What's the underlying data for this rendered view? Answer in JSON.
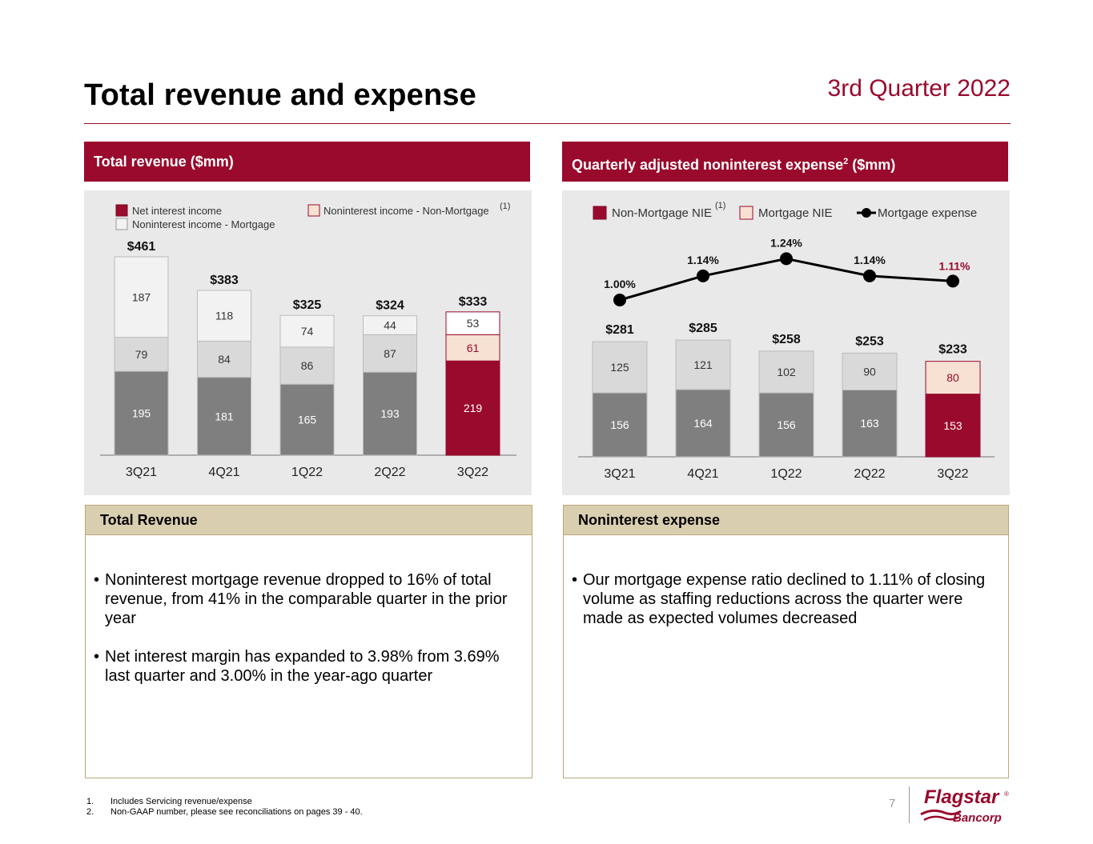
{
  "header": {
    "title": "Total revenue and expense",
    "subtitle": "3rd Quarter 2022"
  },
  "colors": {
    "brand": "#990a2c",
    "dark_gray": "#7f7f7f",
    "light_gray": "#d9d9d9",
    "very_light": "#f2f2f2",
    "peach": "#f6e1d3",
    "tan": "#d9cfb0"
  },
  "left_panel": {
    "banner": "Total revenue ($mm)"
  },
  "right_panel": {
    "banner_text": "Quarterly adjusted noninterest expense",
    "banner_sup": "2",
    "banner_suffix": " ($mm)"
  },
  "chart_data": [
    {
      "type": "bar",
      "title": "Total revenue ($mm)",
      "categories": [
        "3Q21",
        "4Q21",
        "1Q22",
        "2Q22",
        "3Q22"
      ],
      "series": [
        {
          "name": "Net interest income",
          "values": [
            195,
            181,
            165,
            193,
            219
          ]
        },
        {
          "name": "Noninterest income - Non-Mortgage",
          "values": [
            79,
            84,
            86,
            87,
            61
          ]
        },
        {
          "name": "Noninterest income - Mortgage",
          "values": [
            187,
            118,
            74,
            44,
            53
          ]
        }
      ],
      "totals": [
        "$461",
        "$383",
        "$325",
        "$324",
        "$333"
      ],
      "legend_footnote": "(1)",
      "highlight_category": "3Q22",
      "ylim": [
        0,
        461
      ]
    },
    {
      "type": "bar",
      "title": "Quarterly adjusted noninterest expense ($mm)",
      "categories": [
        "3Q21",
        "4Q21",
        "1Q22",
        "2Q22",
        "3Q22"
      ],
      "series": [
        {
          "name": "Non-Mortgage NIE",
          "values": [
            156,
            164,
            156,
            163,
            153
          ]
        },
        {
          "name": "Mortgage NIE",
          "values": [
            125,
            121,
            102,
            90,
            80
          ]
        }
      ],
      "totals": [
        "$281",
        "$285",
        "$258",
        "$253",
        "$233"
      ],
      "line_series": {
        "name": "Mortgage expense",
        "values": [
          1.0,
          1.14,
          1.24,
          1.14,
          1.11
        ],
        "labels": [
          "1.00%",
          "1.14%",
          "1.24%",
          "1.14%",
          "1.11%"
        ]
      },
      "legend_footnote": "(1)",
      "highlight_category": "3Q22",
      "ylim": [
        0,
        285
      ]
    }
  ],
  "sections": {
    "left": {
      "heading": "Total Revenue",
      "bullets": [
        "Noninterest mortgage revenue dropped to 16% of total revenue, from 41% in the comparable quarter in the prior year",
        "Net interest margin has expanded to 3.98% from 3.69% last quarter and 3.00% in the year-ago quarter"
      ]
    },
    "right": {
      "heading": "Noninterest expense",
      "bullets": [
        "Our mortgage expense ratio declined to 1.11% of closing volume as staffing reductions across the quarter were made as expected volumes decreased"
      ]
    }
  },
  "footnotes": [
    {
      "num": "1.",
      "text": "Includes Servicing revenue/expense"
    },
    {
      "num": "2.",
      "text": "Non-GAAP number, please see reconciliations on pages 39 - 40."
    }
  ],
  "page_number": "7",
  "logo": {
    "line1": "Flagstar",
    "mark": "®",
    "line2": "Bancorp"
  }
}
